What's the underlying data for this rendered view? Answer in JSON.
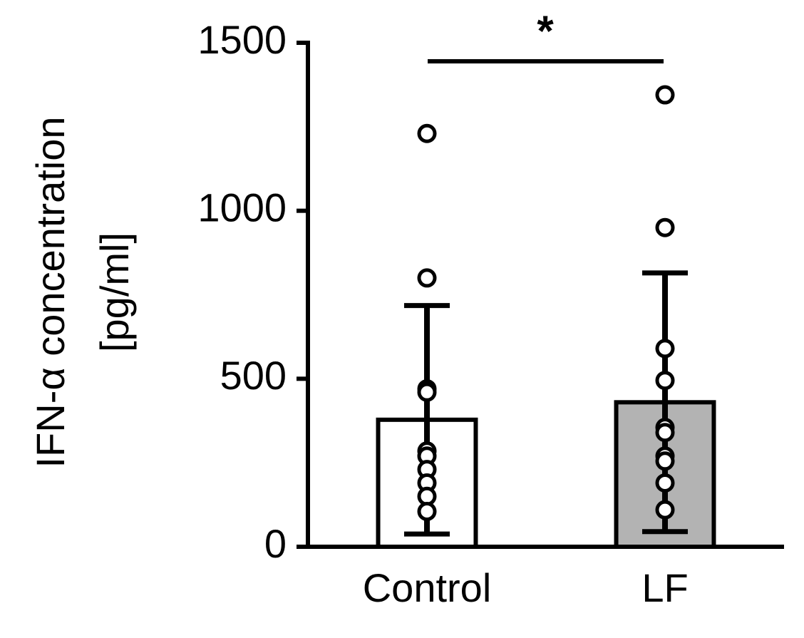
{
  "chart_data": {
    "type": "bar",
    "ylabel": [
      "IFN-α concentration",
      "[pg/ml]"
    ],
    "categories": [
      "Control",
      "LF"
    ],
    "values": [
      378,
      430
    ],
    "errors": [
      340,
      385
    ],
    "colors": [
      "#ffffff",
      "#b3b3b3"
    ],
    "points": [
      [
        1230,
        800,
        470,
        460,
        285,
        270,
        230,
        190,
        150,
        105
      ],
      [
        1345,
        950,
        590,
        495,
        355,
        340,
        270,
        255,
        190,
        110
      ]
    ],
    "annotation": "*",
    "ylim": [
      0,
      1500
    ],
    "yticks": [
      0,
      500,
      1000,
      1500
    ]
  }
}
